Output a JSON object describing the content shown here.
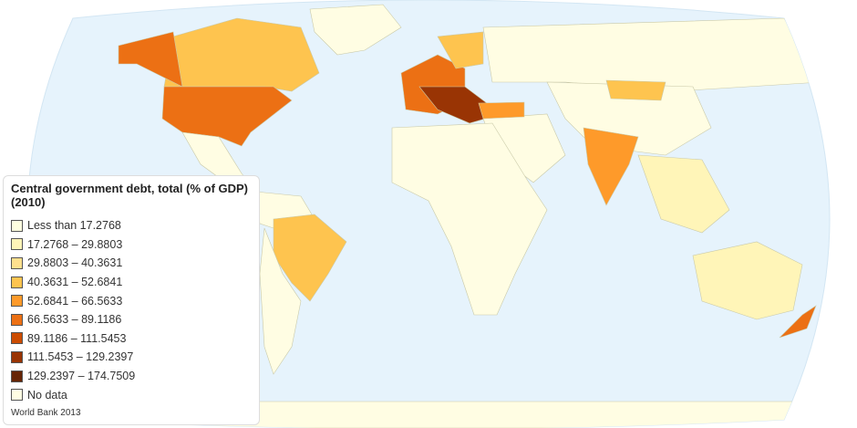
{
  "title": "Central government debt, total (% of GDP) (2010)",
  "legend": [
    {
      "label": "Less than 17.2768",
      "color": "#ffffe0"
    },
    {
      "label": "17.2768 – 29.8803",
      "color": "#fff5b8"
    },
    {
      "label": "29.8803 – 40.3631",
      "color": "#fee08e"
    },
    {
      "label": "40.3631 – 52.6841",
      "color": "#fec44f"
    },
    {
      "label": "52.6841 – 66.5633",
      "color": "#fe9a2a"
    },
    {
      "label": "66.5633 – 89.1186",
      "color": "#ec7014"
    },
    {
      "label": "89.1186 – 111.5453",
      "color": "#cc4c02"
    },
    {
      "label": "111.5453 – 129.2397",
      "color": "#993404"
    },
    {
      "label": "129.2397 – 174.7509",
      "color": "#662506"
    },
    {
      "label": "No data",
      "color": "#fffde3"
    }
  ],
  "source": "World Bank 2013",
  "colors": {
    "ocean": "#e6f3fc",
    "border": "#c9c9a8"
  }
}
